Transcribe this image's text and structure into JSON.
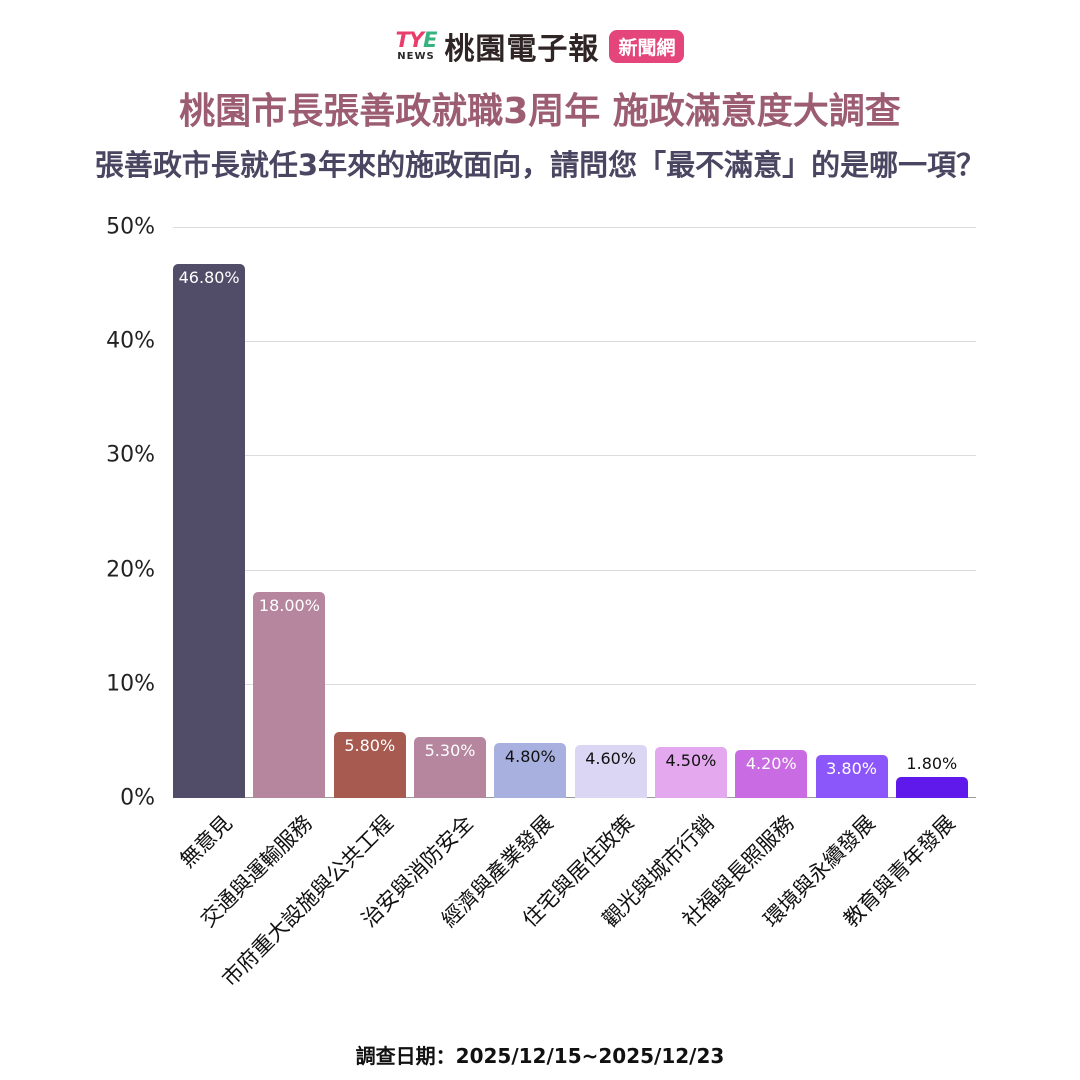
{
  "header": {
    "logo": {
      "tye_t": "T",
      "tye_y": "Y",
      "tye_e": "E",
      "news": "NEWS",
      "name": "桃園電子報",
      "badge": "新聞網"
    },
    "title": "桃園市長張善政就職3周年  施政滿意度大調查",
    "subtitle": "張善政市長就任3年來的施政面向，請問您「最不滿意」的是哪一項？"
  },
  "footer": {
    "survey_date": "調查日期：2025/12/15~2025/12/23"
  },
  "chart_data": {
    "type": "bar",
    "title": "桃園市長張善政就職3周年  施政滿意度大調查",
    "subtitle": "張善政市長就任3年來的施政面向，請問您「最不滿意」的是哪一項？",
    "xlabel": "",
    "ylabel": "",
    "ylim": [
      0,
      50
    ],
    "yticks": [
      "0%",
      "10%",
      "20%",
      "30%",
      "40%",
      "50%"
    ],
    "grid": true,
    "legend": "none",
    "categories": [
      "無意見",
      "交通與運輸服務",
      "市府重大設施與公共工程",
      "治安與消防安全",
      "經濟與產業發展",
      "住宅與居住政策",
      "觀光與城市行銷",
      "社福與長照服務",
      "環境與永續發展",
      "教育與青年發展"
    ],
    "values": [
      46.8,
      18.0,
      5.8,
      5.3,
      4.8,
      4.6,
      4.5,
      4.2,
      3.8,
      1.8
    ],
    "value_labels": [
      "46.80%",
      "18.00%",
      "5.80%",
      "5.30%",
      "4.80%",
      "4.60%",
      "4.50%",
      "4.20%",
      "3.80%",
      "1.80%"
    ],
    "colors": [
      "#514d69",
      "#b5869e",
      "#a65a50",
      "#b5869e",
      "#a8b0e0",
      "#dcd6f5",
      "#e3a8ee",
      "#c96be3",
      "#8c57fa",
      "#5f19ea"
    ],
    "label_colors": [
      "#ffffff",
      "#ffffff",
      "#ffffff",
      "#ffffff",
      "#111111",
      "#111111",
      "#111111",
      "#ffffff",
      "#ffffff",
      "#111111"
    ],
    "annotations": [
      "調查日期：2025/12/15~2025/12/23"
    ]
  }
}
